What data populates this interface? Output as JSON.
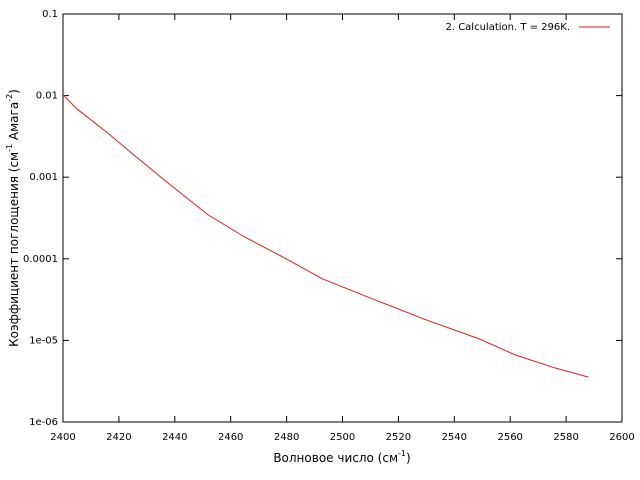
{
  "chart_data": {
    "type": "line",
    "xlabel_parts": [
      {
        "text": "Волновое число (см"
      },
      {
        "text": "-1",
        "sup": true
      },
      {
        "text": ")"
      }
    ],
    "ylabel_parts": [
      {
        "text": "Коэффициент поглощения (см"
      },
      {
        "text": "-1",
        "sup": true
      },
      {
        "text": " Амага"
      },
      {
        "text": "-2",
        "sup": true
      },
      {
        "text": ")"
      }
    ],
    "x": [
      2400,
      2405,
      2416,
      2425,
      2438,
      2452,
      2465,
      2478,
      2493,
      2510,
      2530,
      2549,
      2562,
      2576,
      2588
    ],
    "series": [
      {
        "name": "2. Calculation. T = 296K.",
        "color": "#e41a1c",
        "values": [
          0.0103,
          0.00686,
          0.00348,
          0.00192,
          0.000826,
          0.000344,
          0.000185,
          0.000108,
          5.65e-05,
          3.3e-05,
          1.78e-05,
          1.04e-05,
          6.6e-06,
          4.6e-06,
          3.55e-06
        ]
      }
    ],
    "xlim": [
      2400,
      2600
    ],
    "xticks": [
      2400,
      2420,
      2440,
      2460,
      2480,
      2500,
      2520,
      2540,
      2560,
      2580,
      2600
    ],
    "ylim": [
      1e-06,
      0.1
    ],
    "ylog": true,
    "yticks": [
      {
        "value": 1e-06,
        "label": "1e-06"
      },
      {
        "value": 1e-05,
        "label": "1e-05"
      },
      0.0001,
      0.001,
      0.01,
      0.1
    ],
    "legend": "top-right"
  }
}
